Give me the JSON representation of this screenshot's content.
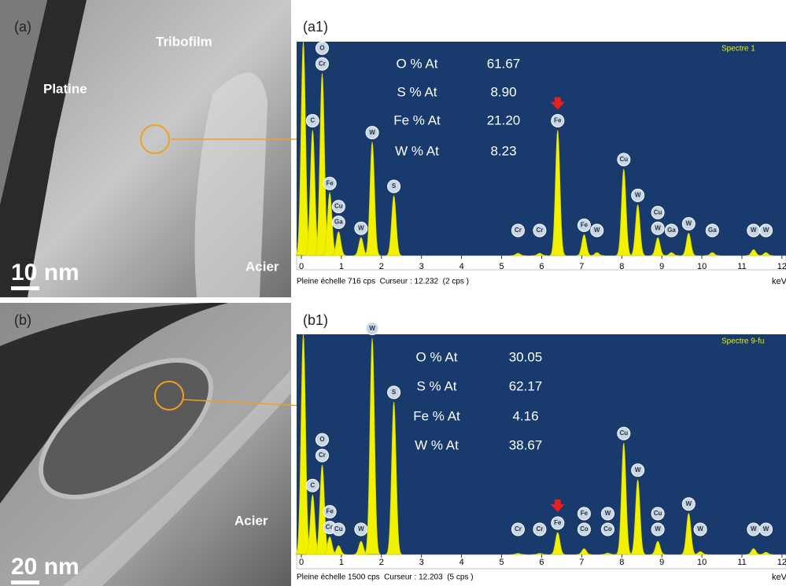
{
  "figure": {
    "panels": [
      {
        "label": "(a)",
        "texts": [
          "Platine",
          "Tribofilm",
          "Acier"
        ],
        "scale_bar": "10 nm"
      },
      {
        "label": "(b)",
        "texts": [
          "Acier"
        ],
        "scale_bar": "20 nm"
      }
    ],
    "spectra": [
      {
        "label": "(a1)",
        "title": "Spectre 1",
        "composition": [
          [
            "O % At",
            "61.67"
          ],
          [
            "S % At",
            "8.90"
          ],
          [
            "Fe % At",
            "21.20"
          ],
          [
            "W % At",
            "8.23"
          ]
        ],
        "footer": "Pleine échelle 716 cps  Curseur : 12.232  (2 cps )",
        "x_unit": "keV",
        "xlim": [
          0,
          12.1
        ],
        "xticks": [
          0,
          1,
          2,
          3,
          4,
          5,
          6,
          7,
          8,
          9,
          10,
          11,
          12
        ],
        "ylim": [
          0,
          716
        ],
        "peaks": [
          {
            "x": 0.05,
            "counts": 716,
            "labels": []
          },
          {
            "x": 0.28,
            "counts": 420,
            "labels": [
              "C"
            ]
          },
          {
            "x": 0.52,
            "counts": 610,
            "labels": [
              "Cr",
              "O"
            ]
          },
          {
            "x": 0.71,
            "counts": 210,
            "labels": [
              "Fe"
            ]
          },
          {
            "x": 0.93,
            "counts": 80,
            "labels": [
              "Ga",
              "Cu"
            ]
          },
          {
            "x": 1.49,
            "counts": 60,
            "labels": [
              "W"
            ]
          },
          {
            "x": 1.77,
            "counts": 380,
            "labels": [
              "W"
            ]
          },
          {
            "x": 2.31,
            "counts": 200,
            "labels": [
              "S"
            ]
          },
          {
            "x": 5.41,
            "counts": 8,
            "labels": [
              "Cr"
            ]
          },
          {
            "x": 5.95,
            "counts": 8,
            "labels": [
              "Cr"
            ]
          },
          {
            "x": 6.4,
            "counts": 420,
            "labels": [
              "Fe"
            ]
          },
          {
            "x": 7.06,
            "counts": 70,
            "labels": [
              "Fe"
            ]
          },
          {
            "x": 7.38,
            "counts": 10,
            "labels": [
              "W"
            ]
          },
          {
            "x": 8.05,
            "counts": 290,
            "labels": [
              "Cu"
            ]
          },
          {
            "x": 8.4,
            "counts": 170,
            "labels": [
              "W"
            ]
          },
          {
            "x": 8.9,
            "counts": 60,
            "labels": [
              "W",
              "Cu"
            ]
          },
          {
            "x": 9.24,
            "counts": 10,
            "labels": [
              "Ga"
            ]
          },
          {
            "x": 9.67,
            "counts": 75,
            "labels": [
              "W"
            ]
          },
          {
            "x": 10.26,
            "counts": 10,
            "labels": [
              "Ga"
            ]
          },
          {
            "x": 11.29,
            "counts": 20,
            "labels": [
              "W"
            ]
          },
          {
            "x": 11.6,
            "counts": 10,
            "labels": [
              "W"
            ]
          }
        ]
      },
      {
        "label": "(b1)",
        "title": "Spectre 9-fu",
        "composition": [
          [
            "O % At",
            "30.05"
          ],
          [
            "S % At",
            "62.17"
          ],
          [
            "Fe % At",
            "4.16"
          ],
          [
            "W % At",
            "38.67"
          ]
        ],
        "footer": "Pleine échelle 1500 cps  Curseur : 12.203  (5 cps )",
        "x_unit": "keV",
        "xlim": [
          0,
          12.1
        ],
        "xticks": [
          0,
          1,
          2,
          3,
          4,
          5,
          6,
          7,
          8,
          9,
          10,
          11,
          12
        ],
        "ylim": [
          0,
          1500
        ],
        "peaks": [
          {
            "x": 0.05,
            "counts": 1500,
            "labels": []
          },
          {
            "x": 0.28,
            "counts": 406,
            "labels": [
              "C"
            ]
          },
          {
            "x": 0.52,
            "counts": 610,
            "labels": [
              "Cr",
              "O"
            ]
          },
          {
            "x": 0.71,
            "counts": 120,
            "labels": [
              "Co",
              "Fe"
            ]
          },
          {
            "x": 0.93,
            "counts": 60,
            "labels": [
              "Cu"
            ]
          },
          {
            "x": 1.49,
            "counts": 90,
            "labels": [
              "W"
            ]
          },
          {
            "x": 1.77,
            "counts": 1475,
            "labels": [
              "W"
            ]
          },
          {
            "x": 2.31,
            "counts": 1040,
            "labels": [
              "S"
            ]
          },
          {
            "x": 5.41,
            "counts": 8,
            "labels": [
              "Cr"
            ]
          },
          {
            "x": 5.95,
            "counts": 8,
            "labels": [
              "Cr"
            ]
          },
          {
            "x": 6.4,
            "counts": 150,
            "labels": [
              "Fe"
            ]
          },
          {
            "x": 7.06,
            "counts": 40,
            "labels": [
              "Co",
              "Fe"
            ]
          },
          {
            "x": 7.65,
            "counts": 10,
            "labels": [
              "Co",
              "W"
            ]
          },
          {
            "x": 8.05,
            "counts": 760,
            "labels": [
              "Cu"
            ]
          },
          {
            "x": 8.4,
            "counts": 510,
            "labels": [
              "W"
            ]
          },
          {
            "x": 8.9,
            "counts": 90,
            "labels": [
              "W",
              "Cu"
            ]
          },
          {
            "x": 9.67,
            "counts": 280,
            "labels": [
              "W"
            ]
          },
          {
            "x": 9.96,
            "counts": 20,
            "labels": [
              "W"
            ]
          },
          {
            "x": 11.29,
            "counts": 40,
            "labels": [
              "W"
            ]
          },
          {
            "x": 11.6,
            "counts": 15,
            "labels": [
              "W"
            ]
          }
        ]
      }
    ]
  }
}
